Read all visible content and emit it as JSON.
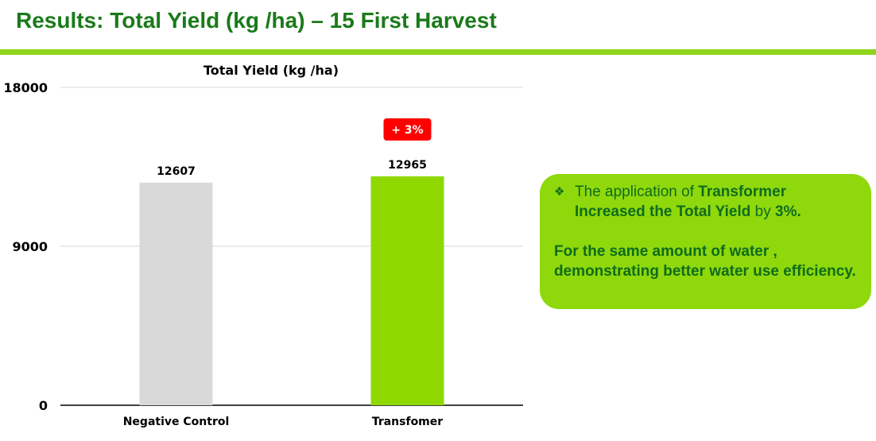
{
  "slide": {
    "title": "Results: Total Yield (kg /ha) – 15 First Harvest"
  },
  "callout": {
    "bullet_symbol": "❖",
    "part1": "The application of ",
    "part2": "Transformer Increased the Total Yield",
    "part3": " by ",
    "part4": "3%.",
    "note": "For the same amount of water , demonstrating better water use efficiency."
  },
  "colors": {
    "title": "#1a7a1a",
    "accent": "#8ed41a",
    "control_bar": "#d9d9d9",
    "treatment_bar": "#8fd800",
    "badge": "#ff0000",
    "callout_bg": "#8fd80c",
    "callout_text": "#0f6c1c"
  },
  "chart_data": {
    "type": "bar",
    "title": "Total Yield (kg /ha)",
    "categories": [
      "Negative Control",
      "Transfomer"
    ],
    "values": [
      12607,
      12965
    ],
    "bar_colors": [
      "#d9d9d9",
      "#8fd800"
    ],
    "ylim": [
      0,
      18000
    ],
    "yticks": [
      0,
      9000,
      18000
    ],
    "grid": true,
    "data_labels": [
      "12607",
      "12965"
    ],
    "annotation": {
      "category": "Transfomer",
      "text": "+ 3%"
    }
  }
}
